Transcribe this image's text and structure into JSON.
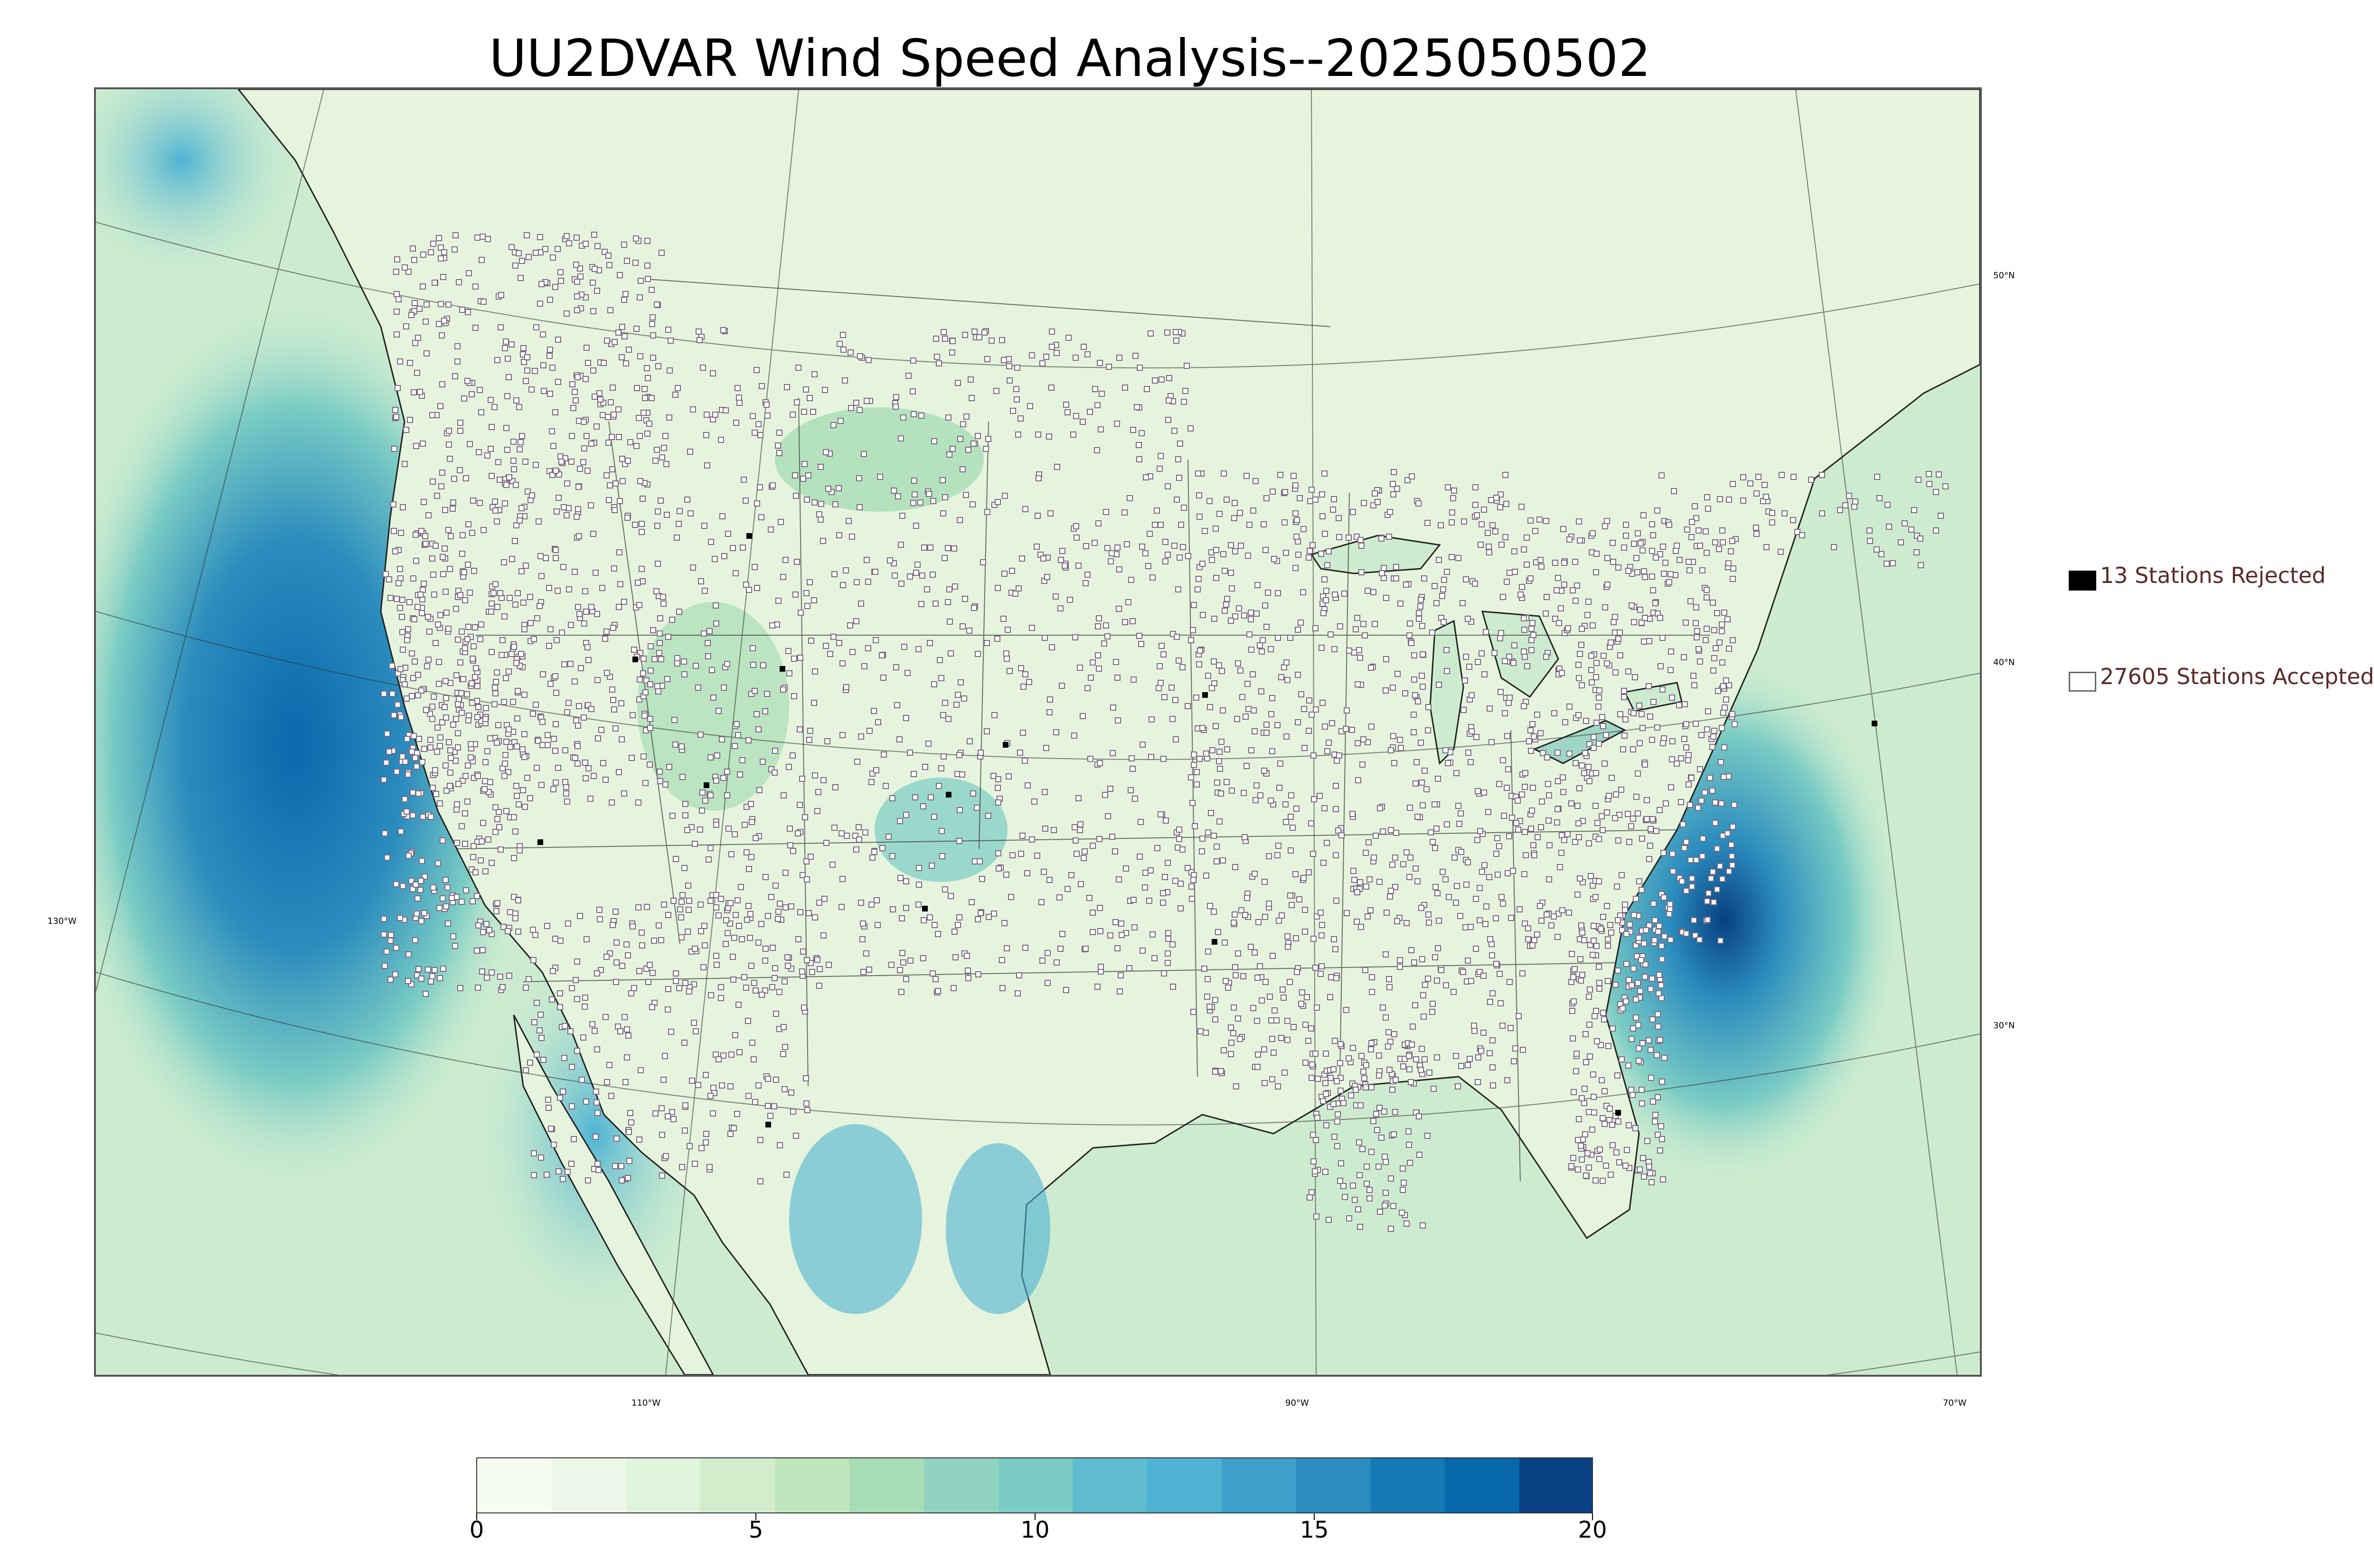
{
  "title": "UU2DVAR Wind Speed Analysis--2025050502",
  "graticule": {
    "lat_labels": [
      "50°N",
      "40°N",
      "30°N"
    ],
    "lon_labels": [
      "130°W",
      "110°W",
      "90°W",
      "70°W"
    ]
  },
  "legend": {
    "rejected": {
      "label": "13 Stations Rejected",
      "swatch_color": "#000000"
    },
    "accepted": {
      "label": "27605 Stations Accepted",
      "swatch_color": "#ffffff"
    }
  },
  "colorbar": {
    "min": 0,
    "max": 20,
    "ticks": [
      "0",
      "5",
      "10",
      "15",
      "20"
    ],
    "colors": [
      "#f7fcf0",
      "#eef8e8",
      "#e0f3db",
      "#d2edcc",
      "#c0e6bd",
      "#a8ddb5",
      "#8fd3c0",
      "#7bccc4",
      "#5fbcce",
      "#4eb3d3",
      "#3da0cb",
      "#2b8cbe",
      "#1479b5",
      "#0868ac",
      "#084081"
    ]
  },
  "colors": {
    "land": "#e7f5df",
    "ocean_near": "#b9e3c4",
    "ocean_windy": "#2b8cbe",
    "borders": "#333333",
    "station_marker": "#7a6a80"
  }
}
